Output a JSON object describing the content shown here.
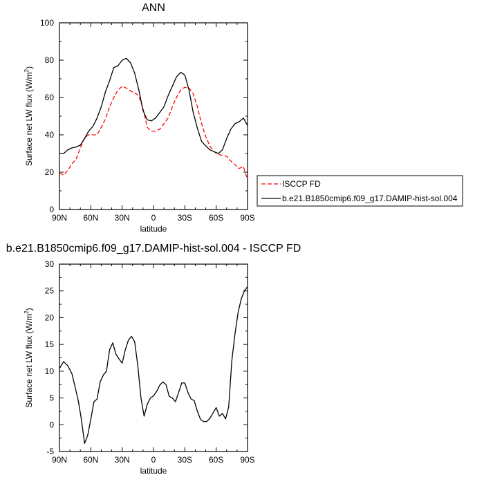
{
  "chart_data": [
    {
      "type": "line",
      "title": "ANN",
      "xlabel": "latitude",
      "ylabel": "Surface net LW flux (W/m",
      "ylabel_sup": "2",
      "ylabel_close": ")",
      "xlim": [
        90,
        -90
      ],
      "ylim": [
        0,
        100
      ],
      "xticks": [
        90,
        60,
        30,
        0,
        -30,
        -60,
        -90
      ],
      "xtick_labels": [
        "90N",
        "60N",
        "30N",
        "0",
        "30S",
        "60S",
        "90S"
      ],
      "yticks": [
        0,
        20,
        40,
        60,
        80,
        100
      ],
      "ytick_labels": [
        "0",
        "20",
        "40",
        "60",
        "80",
        "100"
      ],
      "grid": false,
      "legend_position": "right",
      "series": [
        {
          "name": "ISCCP FD",
          "color": "#ff0000",
          "dash": "dashed",
          "x": [
            90,
            86,
            82,
            78,
            74,
            70,
            66,
            62,
            58,
            54,
            50,
            46,
            42,
            38,
            34,
            30,
            26,
            22,
            18,
            14,
            10,
            6,
            2,
            -2,
            -6,
            -10,
            -14,
            -18,
            -22,
            -26,
            -30,
            -34,
            -38,
            -42,
            -46,
            -50,
            -54,
            -58,
            -62,
            -66,
            -70,
            -74,
            -78,
            -82,
            -86,
            -90
          ],
          "values": [
            19.5,
            18.5,
            21,
            24.5,
            27,
            33,
            38.5,
            40,
            40,
            40,
            44,
            48.5,
            55,
            60,
            64,
            66,
            65,
            63.5,
            62.5,
            61,
            54,
            44,
            42,
            42,
            43,
            46,
            49,
            55,
            60,
            64,
            65.5,
            65,
            62,
            55,
            46,
            39,
            34,
            31,
            29.5,
            29,
            28.5,
            26,
            24,
            22,
            23,
            16
          ]
        },
        {
          "name": "b.e21.B1850cmip6.f09_g17.DAMIP-hist-sol.004",
          "color": "#000000",
          "dash": "solid",
          "x": [
            90,
            86,
            82,
            78,
            74,
            70,
            66,
            62,
            58,
            54,
            50,
            46,
            42,
            38,
            34,
            30,
            26,
            22,
            18,
            14,
            10,
            6,
            2,
            -2,
            -6,
            -10,
            -14,
            -18,
            -22,
            -26,
            -30,
            -34,
            -38,
            -42,
            -46,
            -50,
            -54,
            -58,
            -62,
            -66,
            -70,
            -74,
            -78,
            -82,
            -86,
            -90
          ],
          "values": [
            30,
            30,
            32,
            33,
            33.5,
            34.5,
            38,
            42,
            44.5,
            49,
            55,
            63,
            69,
            76,
            77,
            80,
            81,
            78.5,
            73,
            64,
            53,
            48,
            47.5,
            49,
            52,
            55,
            61,
            66,
            71,
            73.5,
            72,
            64,
            52,
            43.5,
            36.5,
            34,
            32,
            31,
            30,
            32,
            38,
            43,
            46,
            47,
            49,
            45
          ]
        }
      ]
    },
    {
      "type": "line",
      "title": "b.e21.B1850cmip6.f09_g17.DAMIP-hist-sol.004 - ISCCP FD",
      "xlabel": "latitude",
      "ylabel": "Surface net LW flux (W/m",
      "ylabel_sup": "2",
      "ylabel_close": ")",
      "xlim": [
        90,
        -90
      ],
      "ylim": [
        -5,
        30
      ],
      "xticks": [
        90,
        60,
        30,
        0,
        -30,
        -60,
        -90
      ],
      "xtick_labels": [
        "90N",
        "60N",
        "30N",
        "0",
        "30S",
        "60S",
        "90S"
      ],
      "yticks": [
        -5,
        0,
        5,
        10,
        15,
        20,
        25,
        30
      ],
      "ytick_labels": [
        "-5",
        "0",
        "5",
        "10",
        "15",
        "20",
        "25",
        "30"
      ],
      "grid": false,
      "series": [
        {
          "color": "#000000",
          "dash": "solid",
          "x": [
            90,
            86,
            82,
            78,
            75,
            72,
            69,
            66,
            63,
            60,
            57,
            54,
            51,
            48,
            45,
            42,
            39,
            36,
            33,
            30,
            27,
            24,
            21,
            18,
            15,
            12,
            9,
            6,
            3,
            0,
            -3,
            -6,
            -9,
            -12,
            -15,
            -18,
            -21,
            -24,
            -27,
            -30,
            -33,
            -36,
            -39,
            -42,
            -45,
            -48,
            -51,
            -54,
            -57,
            -60,
            -63,
            -66,
            -69,
            -72,
            -75,
            -78,
            -81,
            -84,
            -87,
            -90
          ],
          "values": [
            10.5,
            11.8,
            11,
            9.5,
            7,
            4.5,
            1,
            -3.5,
            -2,
            1,
            4.3,
            4.8,
            8,
            9.3,
            10,
            14,
            15.3,
            13.2,
            12.3,
            11.5,
            14,
            15.8,
            16.5,
            15.5,
            11,
            5,
            1.6,
            3.8,
            5,
            5.4,
            6.2,
            7.4,
            8,
            7.5,
            5.3,
            5,
            4.3,
            6,
            7.8,
            7.8,
            6,
            4.8,
            4.5,
            2.5,
            1,
            0.6,
            0.6,
            1.2,
            2.2,
            3.2,
            1.6,
            2.1,
            1.1,
            3.4,
            12,
            17,
            21,
            23.5,
            25,
            25.8
          ]
        }
      ]
    }
  ]
}
